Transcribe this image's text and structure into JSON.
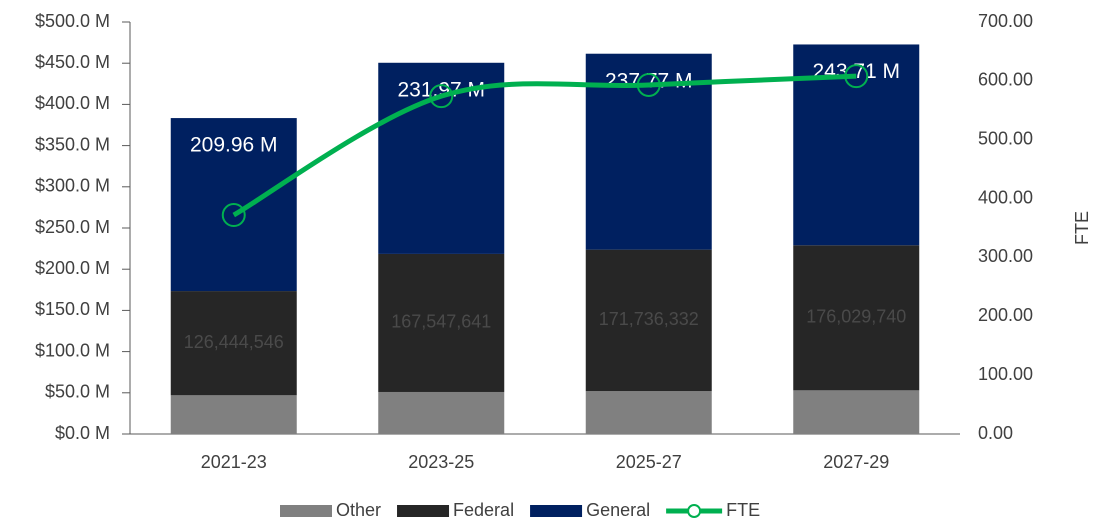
{
  "chart_data": {
    "type": "bar",
    "categories": [
      "2021-23",
      "2023-25",
      "2025-27",
      "2027-29"
    ],
    "stacked": true,
    "series": [
      {
        "name": "Other",
        "color": "#808080",
        "values": [
          47000000,
          51000000,
          52000000,
          53000000
        ]
      },
      {
        "name": "Federal",
        "color": "#262626",
        "values": [
          126444546,
          167547641,
          171736332,
          176029740
        ],
        "value_labels": [
          "126,444,546",
          "167,547,641",
          "171,736,332",
          "176,029,740"
        ]
      },
      {
        "name": "General",
        "color": "#002060",
        "values": [
          209960000,
          231970000,
          237770000,
          243710000
        ],
        "value_labels": [
          "209.96 M",
          "231.97 M",
          "237.77 M",
          "243.71 M"
        ]
      },
      {
        "name": "FTE",
        "type": "line",
        "axis": "y2",
        "color": "#00b050",
        "values": [
          372,
          574,
          593,
          608
        ]
      }
    ],
    "ylim": [
      0,
      500000000
    ],
    "yticks": [
      {
        "value": 0,
        "label": "$0.0 M"
      },
      {
        "value": 50000000,
        "label": "$50.0 M"
      },
      {
        "value": 100000000,
        "label": "$100.0 M"
      },
      {
        "value": 150000000,
        "label": "$150.0 M"
      },
      {
        "value": 200000000,
        "label": "$200.0 M"
      },
      {
        "value": 250000000,
        "label": "$250.0 M"
      },
      {
        "value": 300000000,
        "label": "$300.0 M"
      },
      {
        "value": 350000000,
        "label": "$350.0 M"
      },
      {
        "value": 400000000,
        "label": "$400.0 M"
      },
      {
        "value": 450000000,
        "label": "$450.0 M"
      },
      {
        "value": 500000000,
        "label": "$500.0 M"
      }
    ],
    "y2lim": [
      0,
      700
    ],
    "y2ticks": [
      {
        "value": 0,
        "label": "0.00"
      },
      {
        "value": 100,
        "label": "100.00"
      },
      {
        "value": 200,
        "label": "200.00"
      },
      {
        "value": 300,
        "label": "300.00"
      },
      {
        "value": 400,
        "label": "400.00"
      },
      {
        "value": 500,
        "label": "500.00"
      },
      {
        "value": 600,
        "label": "600.00"
      },
      {
        "value": 700,
        "label": "700.00"
      }
    ],
    "y2label": "FTE",
    "legend": "bottom"
  }
}
